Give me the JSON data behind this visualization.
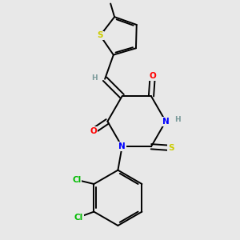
{
  "bg_color": "#e8e8e8",
  "bond_color": "#000000",
  "atom_colors": {
    "O": "#ff0000",
    "N": "#0000ff",
    "S_thioxo": "#cccc00",
    "S_thienyl": "#cccc00",
    "Cl": "#00bb00",
    "H": "#7a9a9a",
    "C": "#000000"
  },
  "font_size": 7.5,
  "line_width": 1.4
}
